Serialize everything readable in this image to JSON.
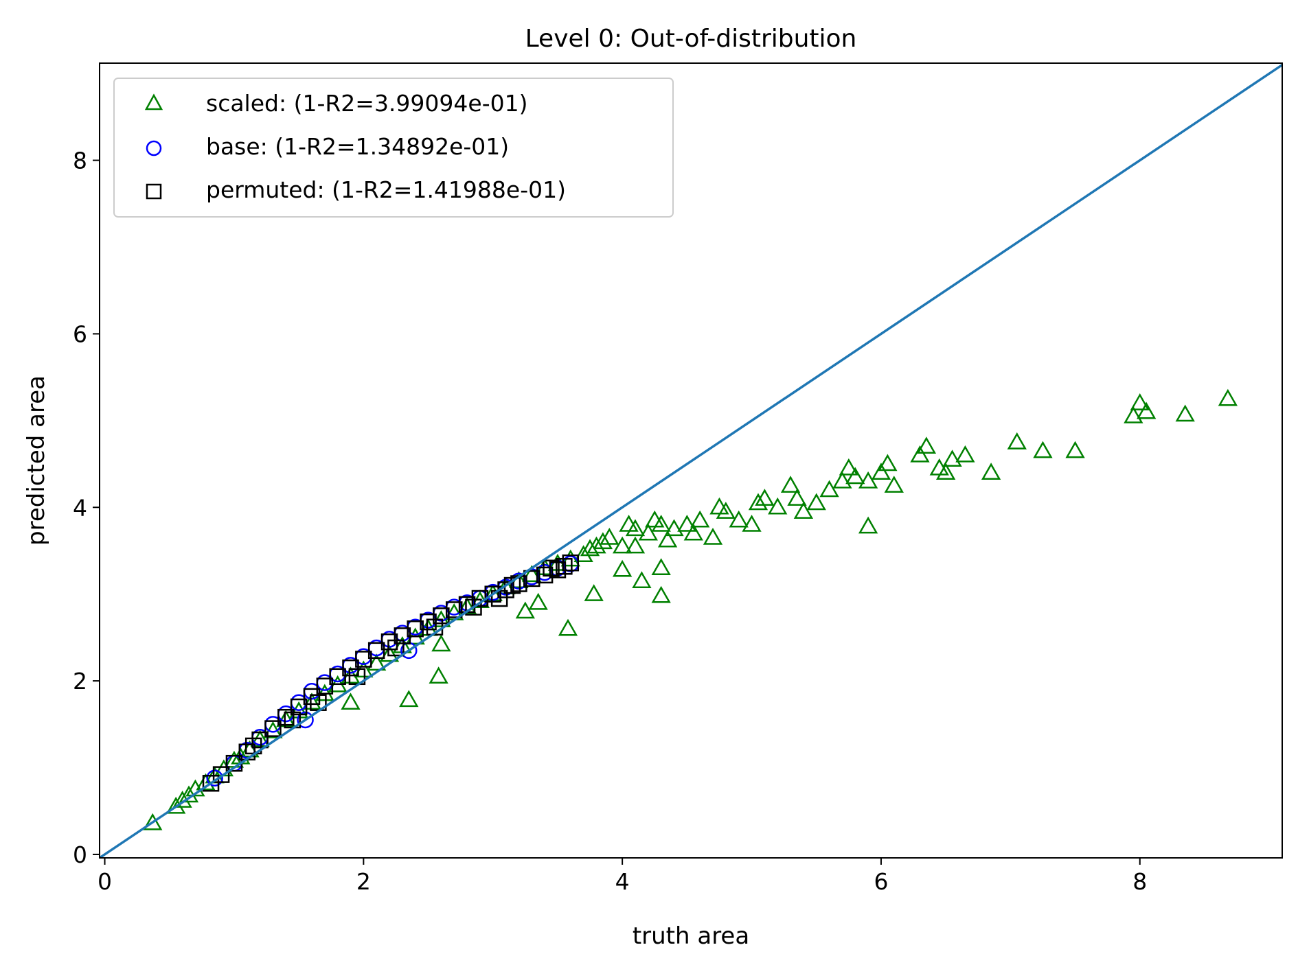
{
  "chart_data": {
    "type": "scatter",
    "title": "Level 0: Out-of-distribution",
    "xlabel": "truth area",
    "ylabel": "predicted area",
    "xlim": [
      -0.04,
      9.1
    ],
    "ylim": [
      -0.04,
      9.12
    ],
    "xticks": [
      {
        "value": 0,
        "label": "0"
      },
      {
        "value": 2,
        "label": "2"
      },
      {
        "value": 4,
        "label": "4"
      },
      {
        "value": 6,
        "label": "6"
      },
      {
        "value": 8,
        "label": "8"
      }
    ],
    "yticks": [
      {
        "value": 0,
        "label": "0"
      },
      {
        "value": 2,
        "label": "2"
      },
      {
        "value": 4,
        "label": "4"
      },
      {
        "value": 6,
        "label": "6"
      },
      {
        "value": 8,
        "label": "8"
      }
    ],
    "grid": false,
    "legend_position": "top-left",
    "reference_line": {
      "name": "y = x",
      "color": "#1f77b4",
      "points": [
        [
          -0.04,
          -0.04
        ],
        [
          9.1,
          9.1
        ]
      ]
    },
    "series": [
      {
        "name": "scaled: (1-R2=3.99094e-01)",
        "marker": "triangle",
        "color": "#008000",
        "points": [
          [
            0.37,
            0.36
          ],
          [
            0.55,
            0.55
          ],
          [
            0.6,
            0.62
          ],
          [
            0.65,
            0.68
          ],
          [
            0.7,
            0.75
          ],
          [
            0.78,
            0.82
          ],
          [
            0.85,
            0.9
          ],
          [
            0.92,
            0.98
          ],
          [
            1.0,
            1.08
          ],
          [
            1.05,
            1.12
          ],
          [
            1.12,
            1.2
          ],
          [
            1.2,
            1.32
          ],
          [
            1.3,
            1.42
          ],
          [
            1.4,
            1.55
          ],
          [
            1.5,
            1.65
          ],
          [
            1.6,
            1.75
          ],
          [
            1.7,
            1.85
          ],
          [
            1.8,
            1.95
          ],
          [
            1.9,
            2.05
          ],
          [
            2.0,
            2.12
          ],
          [
            2.1,
            2.2
          ],
          [
            2.2,
            2.3
          ],
          [
            2.3,
            2.4
          ],
          [
            2.4,
            2.5
          ],
          [
            2.5,
            2.6
          ],
          [
            2.6,
            2.7
          ],
          [
            2.7,
            2.78
          ],
          [
            2.8,
            2.85
          ],
          [
            2.9,
            2.92
          ],
          [
            3.0,
            3.0
          ],
          [
            3.1,
            3.08
          ],
          [
            3.2,
            3.15
          ],
          [
            3.3,
            3.22
          ],
          [
            3.4,
            3.3
          ],
          [
            3.5,
            3.35
          ],
          [
            3.6,
            3.4
          ],
          [
            3.7,
            3.45
          ],
          [
            3.75,
            3.52
          ],
          [
            3.8,
            3.55
          ],
          [
            3.85,
            3.6
          ],
          [
            3.9,
            3.65
          ],
          [
            4.0,
            3.55
          ],
          [
            4.05,
            3.8
          ],
          [
            4.1,
            3.75
          ],
          [
            4.2,
            3.7
          ],
          [
            4.25,
            3.85
          ],
          [
            4.3,
            3.8
          ],
          [
            4.4,
            3.75
          ],
          [
            4.5,
            3.8
          ],
          [
            4.55,
            3.7
          ],
          [
            4.6,
            3.85
          ],
          [
            4.7,
            3.65
          ],
          [
            4.75,
            4.0
          ],
          [
            4.8,
            3.95
          ],
          [
            4.9,
            3.85
          ],
          [
            5.0,
            3.8
          ],
          [
            5.05,
            4.05
          ],
          [
            5.1,
            4.1
          ],
          [
            5.2,
            4.0
          ],
          [
            5.3,
            4.25
          ],
          [
            5.35,
            4.1
          ],
          [
            5.4,
            3.95
          ],
          [
            5.5,
            4.05
          ],
          [
            5.6,
            4.2
          ],
          [
            5.7,
            4.3
          ],
          [
            5.75,
            4.45
          ],
          [
            5.8,
            4.35
          ],
          [
            5.9,
            4.3
          ],
          [
            6.0,
            4.4
          ],
          [
            6.05,
            4.5
          ],
          [
            6.1,
            4.25
          ],
          [
            6.3,
            4.6
          ],
          [
            6.35,
            4.7
          ],
          [
            6.45,
            4.45
          ],
          [
            6.5,
            4.4
          ],
          [
            6.55,
            4.55
          ],
          [
            6.65,
            4.6
          ],
          [
            6.85,
            4.4
          ],
          [
            7.05,
            4.75
          ],
          [
            7.25,
            4.65
          ],
          [
            7.5,
            4.65
          ],
          [
            7.95,
            5.05
          ],
          [
            8.0,
            5.2
          ],
          [
            8.05,
            5.1
          ],
          [
            8.35,
            5.07
          ],
          [
            8.68,
            5.25
          ],
          [
            3.78,
            3.0
          ],
          [
            4.0,
            3.28
          ],
          [
            4.15,
            3.15
          ],
          [
            4.3,
            3.3
          ],
          [
            4.3,
            2.98
          ],
          [
            3.58,
            2.6
          ],
          [
            2.58,
            2.05
          ],
          [
            2.35,
            1.78
          ],
          [
            3.25,
            2.8
          ],
          [
            3.35,
            2.9
          ],
          [
            2.6,
            2.42
          ],
          [
            1.9,
            1.75
          ],
          [
            5.9,
            3.78
          ],
          [
            4.1,
            3.55
          ],
          [
            4.35,
            3.62
          ]
        ]
      },
      {
        "name": "base: (1-R2=1.34892e-01)",
        "marker": "circle",
        "color": "#0000ff",
        "points": [
          [
            0.85,
            0.88
          ],
          [
            1.0,
            1.05
          ],
          [
            1.1,
            1.2
          ],
          [
            1.2,
            1.35
          ],
          [
            1.3,
            1.5
          ],
          [
            1.4,
            1.62
          ],
          [
            1.5,
            1.75
          ],
          [
            1.6,
            1.88
          ],
          [
            1.7,
            1.98
          ],
          [
            1.8,
            2.08
          ],
          [
            1.9,
            2.18
          ],
          [
            2.0,
            2.28
          ],
          [
            2.1,
            2.38
          ],
          [
            2.2,
            2.48
          ],
          [
            2.3,
            2.55
          ],
          [
            2.4,
            2.62
          ],
          [
            2.5,
            2.7
          ],
          [
            2.6,
            2.78
          ],
          [
            2.7,
            2.85
          ],
          [
            2.8,
            2.9
          ],
          [
            2.9,
            2.95
          ],
          [
            3.0,
            3.02
          ],
          [
            3.1,
            3.08
          ],
          [
            3.2,
            3.15
          ],
          [
            3.3,
            3.2
          ],
          [
            3.4,
            3.25
          ],
          [
            3.5,
            3.3
          ],
          [
            3.6,
            3.35
          ],
          [
            1.55,
            1.55
          ],
          [
            2.35,
            2.35
          ]
        ]
      },
      {
        "name": "permuted: (1-R2=1.41988e-01)",
        "marker": "square",
        "color": "#000000",
        "points": [
          [
            0.82,
            0.82
          ],
          [
            0.9,
            0.92
          ],
          [
            1.0,
            1.05
          ],
          [
            1.1,
            1.18
          ],
          [
            1.2,
            1.32
          ],
          [
            1.3,
            1.45
          ],
          [
            1.4,
            1.58
          ],
          [
            1.5,
            1.7
          ],
          [
            1.6,
            1.82
          ],
          [
            1.7,
            1.94
          ],
          [
            1.8,
            2.05
          ],
          [
            1.9,
            2.15
          ],
          [
            2.0,
            2.25
          ],
          [
            2.1,
            2.35
          ],
          [
            2.2,
            2.45
          ],
          [
            2.3,
            2.52
          ],
          [
            2.4,
            2.6
          ],
          [
            2.5,
            2.68
          ],
          [
            2.6,
            2.75
          ],
          [
            2.7,
            2.82
          ],
          [
            2.8,
            2.88
          ],
          [
            2.9,
            2.95
          ],
          [
            3.0,
            3.0
          ],
          [
            3.1,
            3.05
          ],
          [
            3.2,
            3.12
          ],
          [
            3.3,
            3.18
          ],
          [
            3.4,
            3.22
          ],
          [
            3.5,
            3.28
          ],
          [
            3.55,
            3.32
          ],
          [
            3.6,
            3.36
          ],
          [
            1.15,
            1.25
          ],
          [
            1.45,
            1.55
          ],
          [
            1.65,
            1.75
          ],
          [
            1.95,
            2.05
          ],
          [
            2.25,
            2.38
          ],
          [
            2.55,
            2.62
          ],
          [
            2.85,
            2.85
          ],
          [
            3.05,
            2.95
          ],
          [
            3.15,
            3.1
          ],
          [
            3.45,
            3.3
          ]
        ]
      }
    ]
  }
}
